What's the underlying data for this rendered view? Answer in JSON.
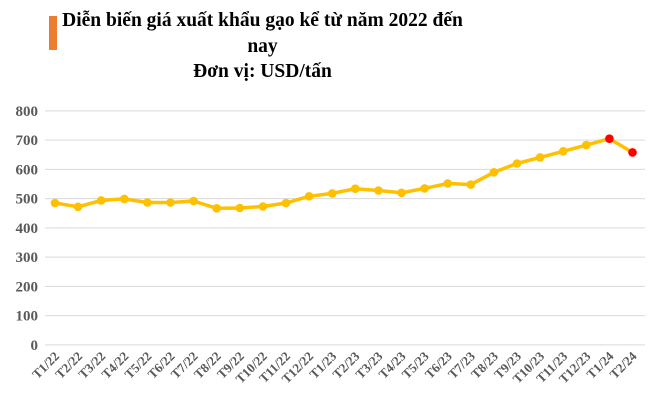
{
  "title": {
    "text": "Diễn biến giá xuất khẩu gạo kể từ năm 2022 đến nay",
    "unit": "Đơn vị: USD/tấn"
  },
  "colors": {
    "accent_bar": "#ED7D31",
    "line": "#FFC000",
    "highlight": "#FF0000",
    "gridline": "#D9D9D9",
    "axis_text": "#595959",
    "title_text": "#000000"
  },
  "chart_data": {
    "type": "line",
    "title": "Diễn biến giá xuất khẩu gạo kể từ năm 2022 đến nay",
    "subtitle": "Đơn vị: USD/tấn",
    "categories": [
      "T1/22",
      "T2/22",
      "T3/22",
      "T4/22",
      "T5/22",
      "T6/22",
      "T7/22",
      "T8/22",
      "T9/22",
      "T10/22",
      "T11/22",
      "T12/22",
      "T1/23",
      "T2/23",
      "T3/23",
      "T4/23",
      "T5/23",
      "T6/23",
      "T7/23",
      "T8/23",
      "T9/23",
      "T10/23",
      "T11/23",
      "T12/23",
      "T1/24",
      "T2/24"
    ],
    "values": [
      485,
      472,
      494,
      499,
      487,
      487,
      492,
      467,
      468,
      473,
      485,
      508,
      518,
      534,
      528,
      520,
      535,
      552,
      548,
      590,
      620,
      641,
      662,
      683,
      705,
      658
    ],
    "xlabel": "",
    "ylabel": "",
    "ylim": [
      0,
      800
    ],
    "ytick_step": 100,
    "xtick_rotation": 45,
    "grid": true,
    "legend": false,
    "highlight_indices": [
      24,
      25
    ]
  }
}
